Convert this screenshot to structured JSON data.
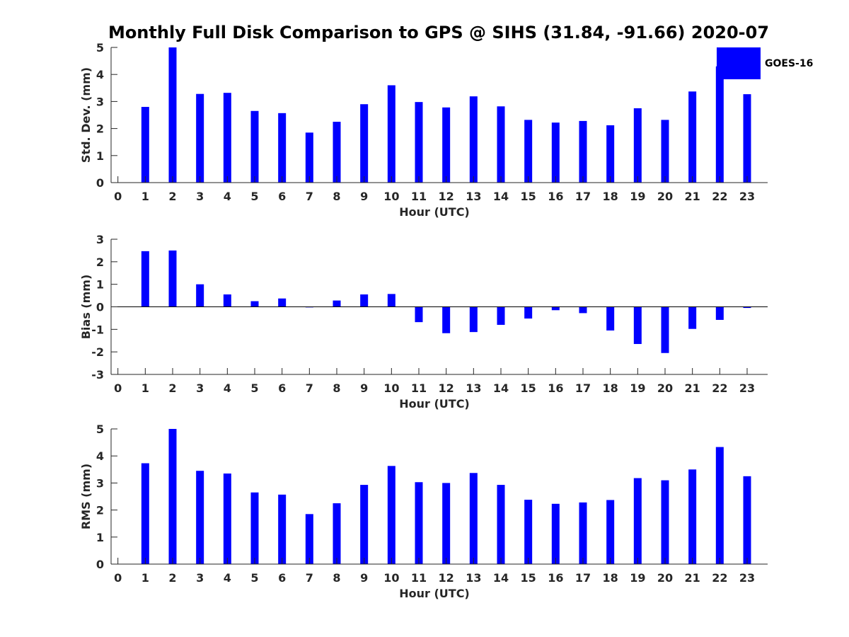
{
  "colors": {
    "bar": "#0000ff",
    "axis": "#262626",
    "background": "#ffffff"
  },
  "chart_data": {
    "title": "Monthly Full Disk Comparison to GPS @ SIHS (31.84, -91.66) 2020-07",
    "legend": {
      "label": "GOES-16",
      "placement": "top-right"
    },
    "panels": [
      {
        "type": "bar",
        "ylabel": "Std. Dev. (mm)",
        "xlabel": "Hour (UTC)",
        "ylim": [
          0,
          5
        ],
        "yticks": [
          0,
          1,
          2,
          3,
          4,
          5
        ],
        "xlim": [
          -0.25,
          23.75
        ],
        "xticks": [
          0,
          1,
          2,
          3,
          4,
          5,
          6,
          7,
          8,
          9,
          10,
          11,
          12,
          13,
          14,
          15,
          16,
          17,
          18,
          19,
          20,
          21,
          22,
          23
        ],
        "x": [
          1,
          2,
          3,
          4,
          5,
          6,
          7,
          8,
          9,
          10,
          11,
          12,
          13,
          14,
          15,
          16,
          17,
          18,
          19,
          20,
          21,
          22,
          23
        ],
        "values": [
          2.8,
          5.0,
          3.28,
          3.32,
          2.65,
          2.57,
          1.85,
          2.25,
          2.9,
          3.6,
          2.98,
          2.78,
          3.19,
          2.82,
          2.32,
          2.22,
          2.28,
          2.12,
          2.75,
          2.32,
          3.37,
          4.3,
          3.27
        ]
      },
      {
        "type": "bar",
        "ylabel": "Bias (mm)",
        "xlabel": "Hour (UTC)",
        "ylim": [
          -3,
          3
        ],
        "yticks": [
          -3,
          -2,
          -1,
          0,
          1,
          2,
          3
        ],
        "xlim": [
          -0.25,
          23.75
        ],
        "xticks": [
          0,
          1,
          2,
          3,
          4,
          5,
          6,
          7,
          8,
          9,
          10,
          11,
          12,
          13,
          14,
          15,
          16,
          17,
          18,
          19,
          20,
          21,
          22,
          23
        ],
        "x": [
          1,
          2,
          3,
          4,
          5,
          6,
          7,
          8,
          9,
          10,
          11,
          12,
          13,
          14,
          15,
          16,
          17,
          18,
          19,
          20,
          21,
          22,
          23
        ],
        "values": [
          2.47,
          2.5,
          1.0,
          0.55,
          0.25,
          0.37,
          -0.02,
          0.28,
          0.55,
          0.57,
          -0.68,
          -1.17,
          -1.12,
          -0.8,
          -0.52,
          -0.15,
          -0.28,
          -1.05,
          -1.65,
          -2.05,
          -0.98,
          -0.58,
          -0.05
        ]
      },
      {
        "type": "bar",
        "ylabel": "RMS (mm)",
        "xlabel": "Hour (UTC)",
        "ylim": [
          0,
          5
        ],
        "yticks": [
          0,
          1,
          2,
          3,
          4,
          5
        ],
        "xlim": [
          -0.25,
          23.75
        ],
        "xticks": [
          0,
          1,
          2,
          3,
          4,
          5,
          6,
          7,
          8,
          9,
          10,
          11,
          12,
          13,
          14,
          15,
          16,
          17,
          18,
          19,
          20,
          21,
          22,
          23
        ],
        "x": [
          1,
          2,
          3,
          4,
          5,
          6,
          7,
          8,
          9,
          10,
          11,
          12,
          13,
          14,
          15,
          16,
          17,
          18,
          19,
          20,
          21,
          22,
          23
        ],
        "values": [
          3.73,
          5.0,
          3.45,
          3.35,
          2.65,
          2.57,
          1.85,
          2.25,
          2.93,
          3.63,
          3.03,
          3.0,
          3.37,
          2.93,
          2.38,
          2.23,
          2.28,
          2.37,
          3.18,
          3.1,
          3.5,
          4.33,
          3.25
        ]
      }
    ]
  }
}
